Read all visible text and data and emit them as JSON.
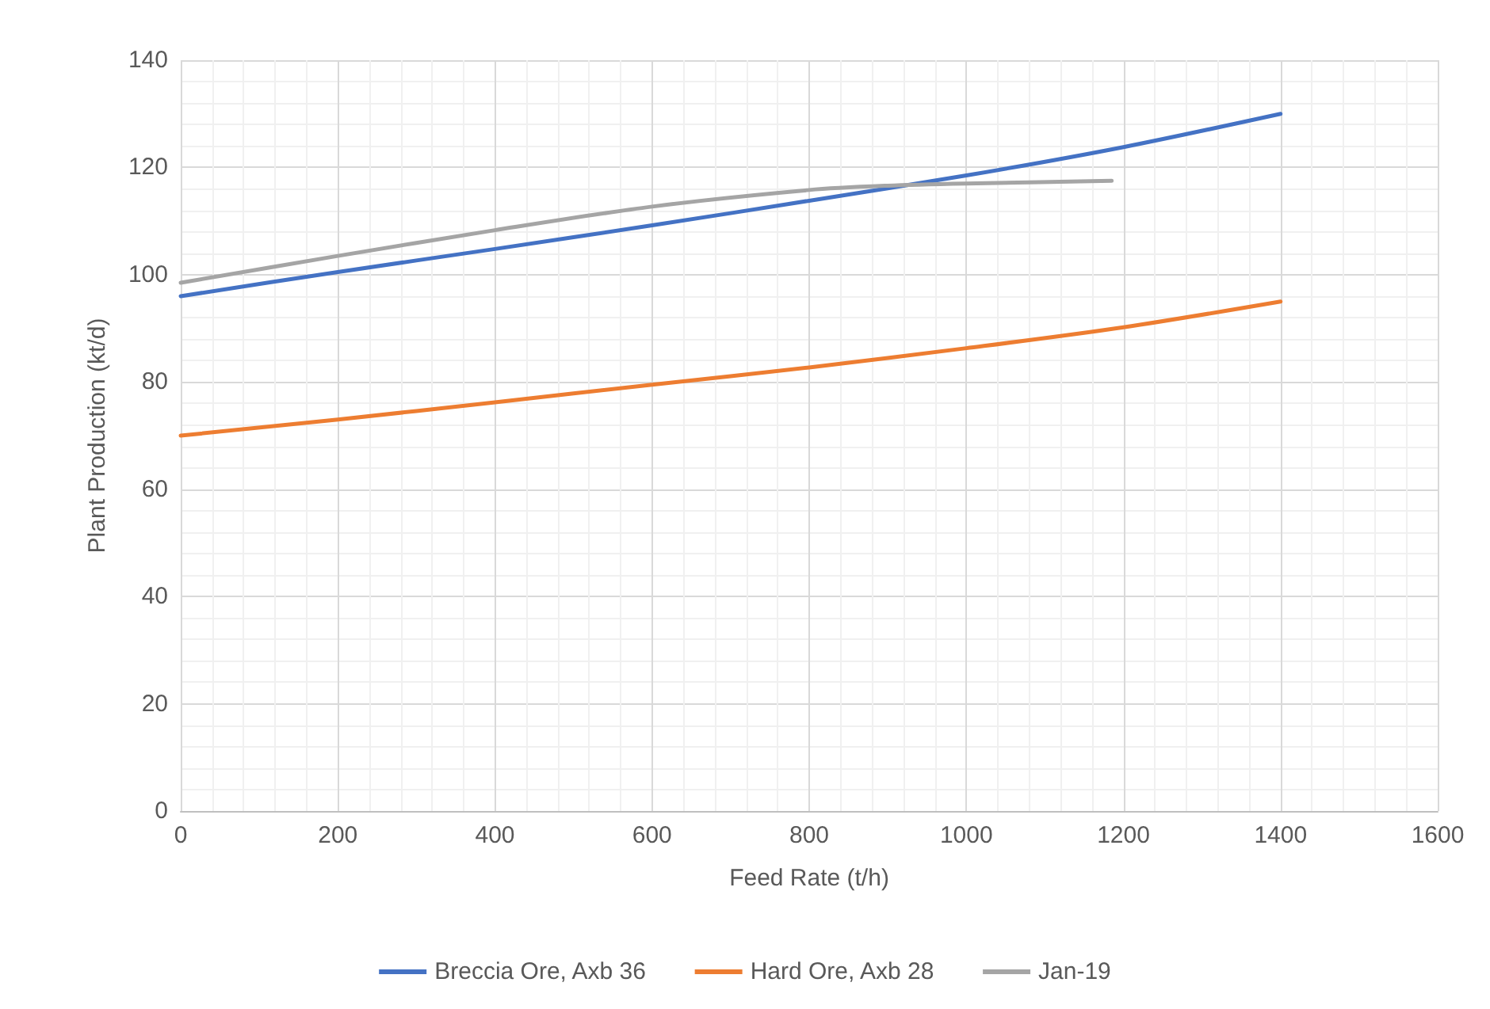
{
  "chart_data": {
    "type": "line",
    "xlabel": "Feed Rate (t/h)",
    "ylabel": "Plant Production (kt/d)",
    "xlim": [
      0,
      1600
    ],
    "xticks": [
      0,
      200,
      400,
      600,
      800,
      1000,
      1200,
      1400,
      1600
    ],
    "ylim": [
      0,
      140
    ],
    "yticks": [
      0,
      20,
      40,
      60,
      80,
      100,
      120,
      140
    ],
    "grid": true,
    "legend": "bottom",
    "marker": "none",
    "line_style": "solid",
    "series": [
      {
        "name": "Breccia Ore, Axb 36",
        "color": "#4472c4",
        "x": [
          0,
          200,
          400,
          600,
          800,
          1000,
          1200,
          1400
        ],
        "values": [
          96,
          100.5,
          104.8,
          109.2,
          113.8,
          118.5,
          123.8,
          130
        ]
      },
      {
        "name": "Hard Ore, Axb 28",
        "color": "#ed7d31",
        "x": [
          0,
          200,
          400,
          600,
          800,
          1000,
          1200,
          1400
        ],
        "values": [
          70,
          73,
          76.2,
          79.5,
          82.7,
          86.3,
          90.2,
          95
        ]
      },
      {
        "name": "Jan-19",
        "color": "#a5a5a5",
        "x": [
          0,
          200,
          400,
          600,
          800,
          900,
          1000,
          1185
        ],
        "values": [
          98.5,
          103.5,
          108.3,
          112.7,
          115.8,
          116.6,
          117,
          117.5
        ]
      }
    ]
  }
}
